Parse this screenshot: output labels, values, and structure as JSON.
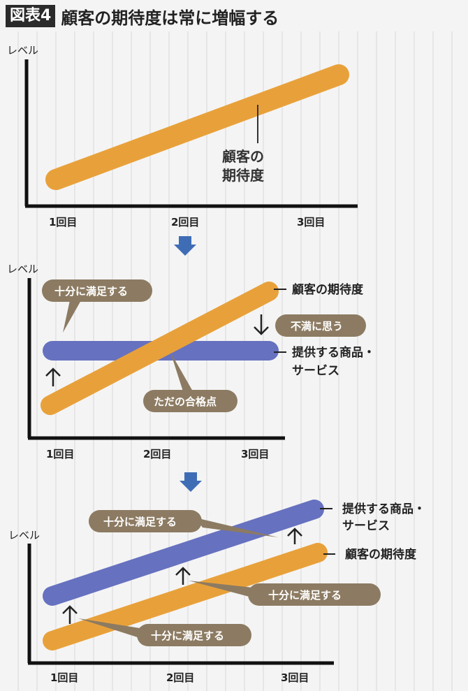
{
  "title": {
    "figure_label": "図表4",
    "text": "顧客の期待度は常に増幅する"
  },
  "panel1": {
    "axis_label": "レベル",
    "ticks": [
      "1回目",
      "2回目",
      "3回目"
    ],
    "line_label_1": "顧客の",
    "line_label_2": "期待度"
  },
  "panel2": {
    "axis_label": "レベル",
    "ticks": [
      "1回目",
      "2回目",
      "3回目"
    ],
    "expectation_label": "顧客の期待度",
    "product_label_1": "提供する商品・",
    "product_label_2": "サービス",
    "bubble_satisfied": "十分に満足する",
    "bubble_dissatisfied": "不満に思う",
    "bubble_pass": "ただの合格点"
  },
  "panel3": {
    "axis_label": "レベル",
    "ticks": [
      "1回目",
      "2回目",
      "3回目"
    ],
    "product_label_1": "提供する商品・",
    "product_label_2": "サービス",
    "expectation_label": "顧客の期待度",
    "bubble_1": "十分に満足する",
    "bubble_2": "十分に満足する",
    "bubble_3": "十分に満足する"
  },
  "colors": {
    "expectation": "#E8A13A",
    "product": "#6671C0",
    "bubble": "#8C7B62",
    "arrow": "#3F6DB5"
  }
}
